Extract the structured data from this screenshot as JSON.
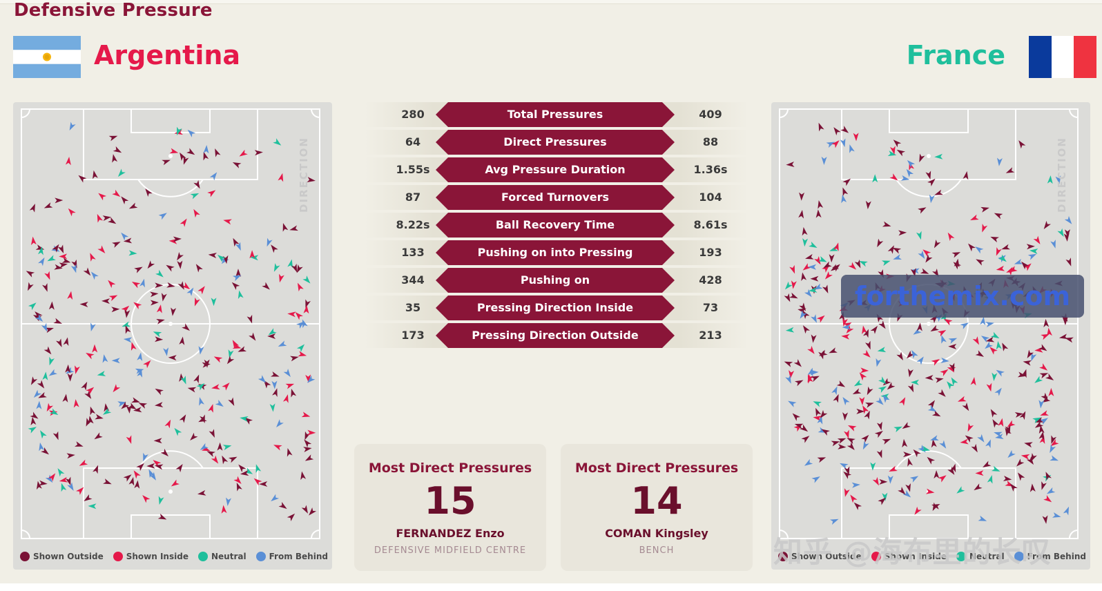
{
  "title": "Defensive Pressure",
  "teams": {
    "home": {
      "name": "Argentina",
      "flag_colors": [
        "#74acdf",
        "#ffffff",
        "#74acdf"
      ],
      "name_color": "#e5194a"
    },
    "away": {
      "name": "France",
      "flag_colors": [
        "#0a3a9c",
        "#ffffff",
        "#ef3340"
      ],
      "name_color": "#1fbf9c"
    }
  },
  "pitch": {
    "direction_label": "DIRECTION"
  },
  "legend": [
    {
      "label": "Shown Outside",
      "color": "#7a1236"
    },
    {
      "label": "Shown Inside",
      "color": "#e5194a"
    },
    {
      "label": "Neutral",
      "color": "#1fbf9c"
    },
    {
      "label": "From Behind",
      "color": "#5a8fd6"
    }
  ],
  "stats": [
    {
      "label": "Total Pressures",
      "home": "280",
      "away": "409"
    },
    {
      "label": "Direct Pressures",
      "home": "64",
      "away": "88"
    },
    {
      "label": "Avg Pressure Duration",
      "home": "1.55s",
      "away": "1.36s"
    },
    {
      "label": "Forced Turnovers",
      "home": "87",
      "away": "104"
    },
    {
      "label": "Ball Recovery Time",
      "home": "8.22s",
      "away": "8.61s"
    },
    {
      "label": "Pushing on into Pressing",
      "home": "133",
      "away": "193"
    },
    {
      "label": "Pushing on",
      "home": "344",
      "away": "428"
    },
    {
      "label": "Pressing Direction Inside",
      "home": "35",
      "away": "73"
    },
    {
      "label": "Pressing Direction Outside",
      "home": "173",
      "away": "213"
    }
  ],
  "cards": [
    {
      "title": "Most Direct Pressures",
      "value": "15",
      "player": "FERNANDEZ Enzo",
      "position": "DEFENSIVE MIDFIELD CENTRE"
    },
    {
      "title": "Most Direct Pressures",
      "value": "14",
      "player": "COMAN Kingsley",
      "position": "BENCH"
    }
  ],
  "watermarks": {
    "site": "forthemix.com",
    "author": "知乎 @海布里的长叹"
  },
  "colors": {
    "accent": "#8a1538",
    "background": "#f1efe6",
    "pitch": "#dcdcd9",
    "pitch_lines": "#ffffff"
  }
}
